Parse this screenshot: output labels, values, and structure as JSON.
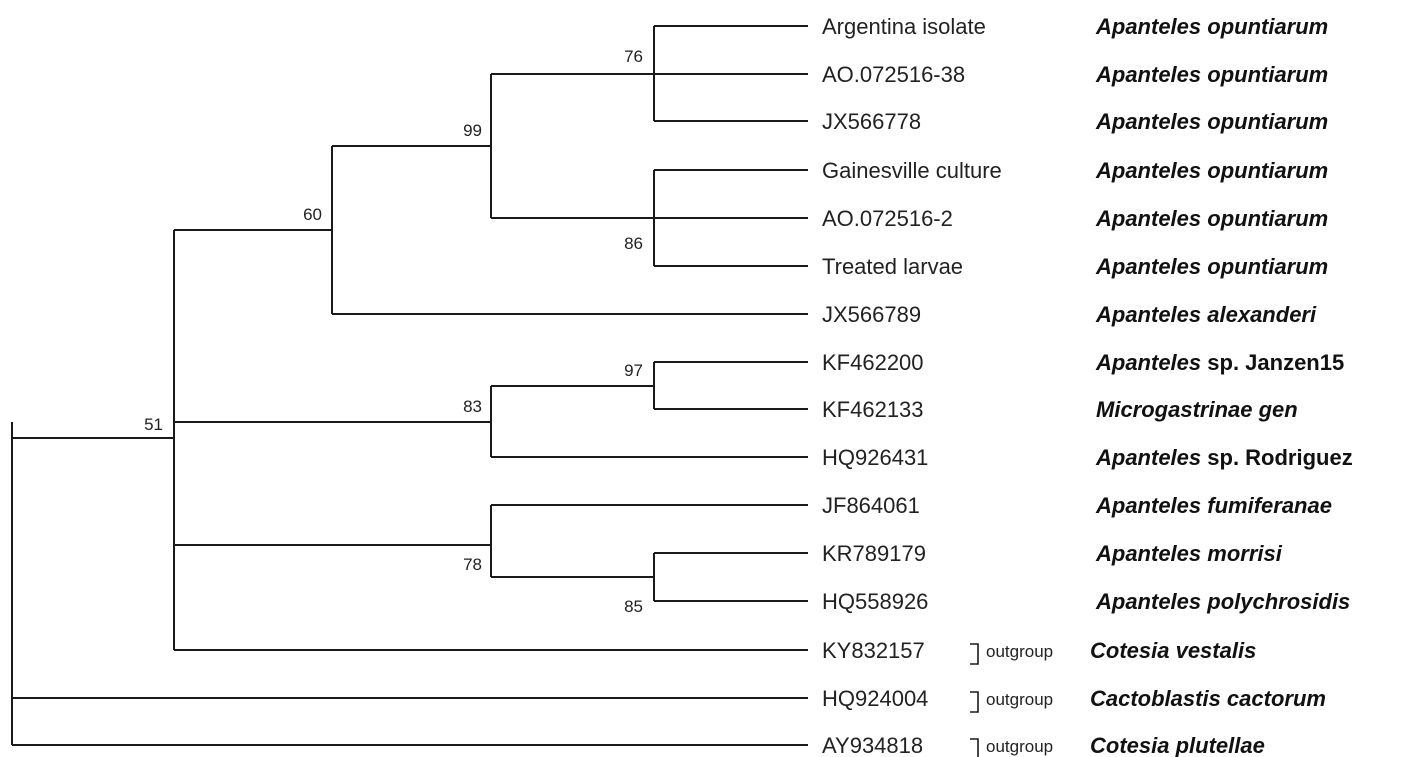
{
  "colors": {
    "line": "#1a1a1a",
    "text": "#222222",
    "background": "#ffffff"
  },
  "taxa": [
    {
      "label": "Argentina isolate",
      "species": "Apanteles opuntiarum",
      "species_suffix": "",
      "group": ""
    },
    {
      "label": "AO.072516-38",
      "species": "Apanteles opuntiarum",
      "species_suffix": "",
      "group": ""
    },
    {
      "label": "JX566778",
      "species": "Apanteles opuntiarum",
      "species_suffix": "",
      "group": ""
    },
    {
      "label": "Gainesville culture",
      "species": "Apanteles opuntiarum",
      "species_suffix": "",
      "group": ""
    },
    {
      "label": "AO.072516-2",
      "species": "Apanteles opuntiarum",
      "species_suffix": "",
      "group": ""
    },
    {
      "label": "Treated larvae",
      "species": "Apanteles opuntiarum",
      "species_suffix": "",
      "group": ""
    },
    {
      "label": "JX566789",
      "species": "Apanteles alexanderi",
      "species_suffix": "",
      "group": ""
    },
    {
      "label": "KF462200",
      "species": "Apanteles",
      "species_suffix": " sp. Janzen15",
      "group": ""
    },
    {
      "label": "KF462133",
      "species": "Microgastrinae gen",
      "species_suffix": "",
      "group": ""
    },
    {
      "label": "HQ926431",
      "species": "Apanteles",
      "species_suffix": " sp. Rodriguez",
      "group": ""
    },
    {
      "label": "JF864061",
      "species": "Apanteles fumiferanae",
      "species_suffix": "",
      "group": ""
    },
    {
      "label": "KR789179",
      "species": "Apanteles morrisi",
      "species_suffix": "",
      "group": ""
    },
    {
      "label": "HQ558926",
      "species": "Apanteles polychrosidis",
      "species_suffix": "",
      "group": ""
    },
    {
      "label": "KY832157",
      "species": "Cotesia vestalis",
      "species_suffix": "",
      "group": "outgroup"
    },
    {
      "label": "HQ924004",
      "species": "Cactoblastis cactorum",
      "species_suffix": "",
      "group": "outgroup"
    },
    {
      "label": "AY934818",
      "species": "Cotesia plutellae",
      "species_suffix": "",
      "group": "outgroup"
    }
  ],
  "support_values": {
    "node_76": "76",
    "node_86": "86",
    "node_99": "99",
    "node_60": "60",
    "node_97": "97",
    "node_83": "83",
    "node_85": "85",
    "node_78": "78",
    "node_51": "51"
  }
}
